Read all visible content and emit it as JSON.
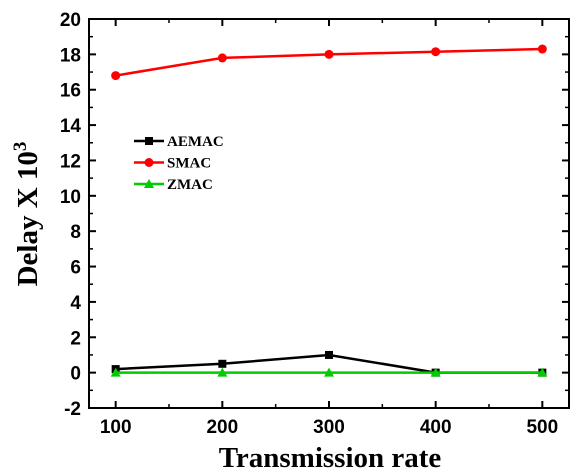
{
  "chart_data": {
    "type": "line",
    "xlabel": "Transmission rate",
    "ylabel": {
      "main": "Delay X 10",
      "superscript": "3"
    },
    "x": [
      100,
      200,
      300,
      400,
      500
    ],
    "xlim": [
      75,
      525
    ],
    "ylim": [
      -2,
      20
    ],
    "xticks": [
      100,
      200,
      300,
      400,
      500
    ],
    "yticks": [
      -2,
      0,
      2,
      4,
      6,
      8,
      10,
      12,
      14,
      16,
      18,
      20
    ],
    "grid": false,
    "legend_position": "center-left",
    "series": [
      {
        "name": "AEMAC",
        "color": "#000000",
        "marker": "square",
        "values": [
          0.2,
          0.5,
          1.0,
          0.0,
          0.0
        ]
      },
      {
        "name": "SMAC",
        "color": "#ff0000",
        "marker": "circle",
        "values": [
          16.8,
          17.8,
          18.0,
          18.15,
          18.3
        ]
      },
      {
        "name": "ZMAC",
        "color": "#00cc00",
        "marker": "triangle",
        "values": [
          0.0,
          0.0,
          0.0,
          0.0,
          0.0
        ]
      }
    ]
  }
}
